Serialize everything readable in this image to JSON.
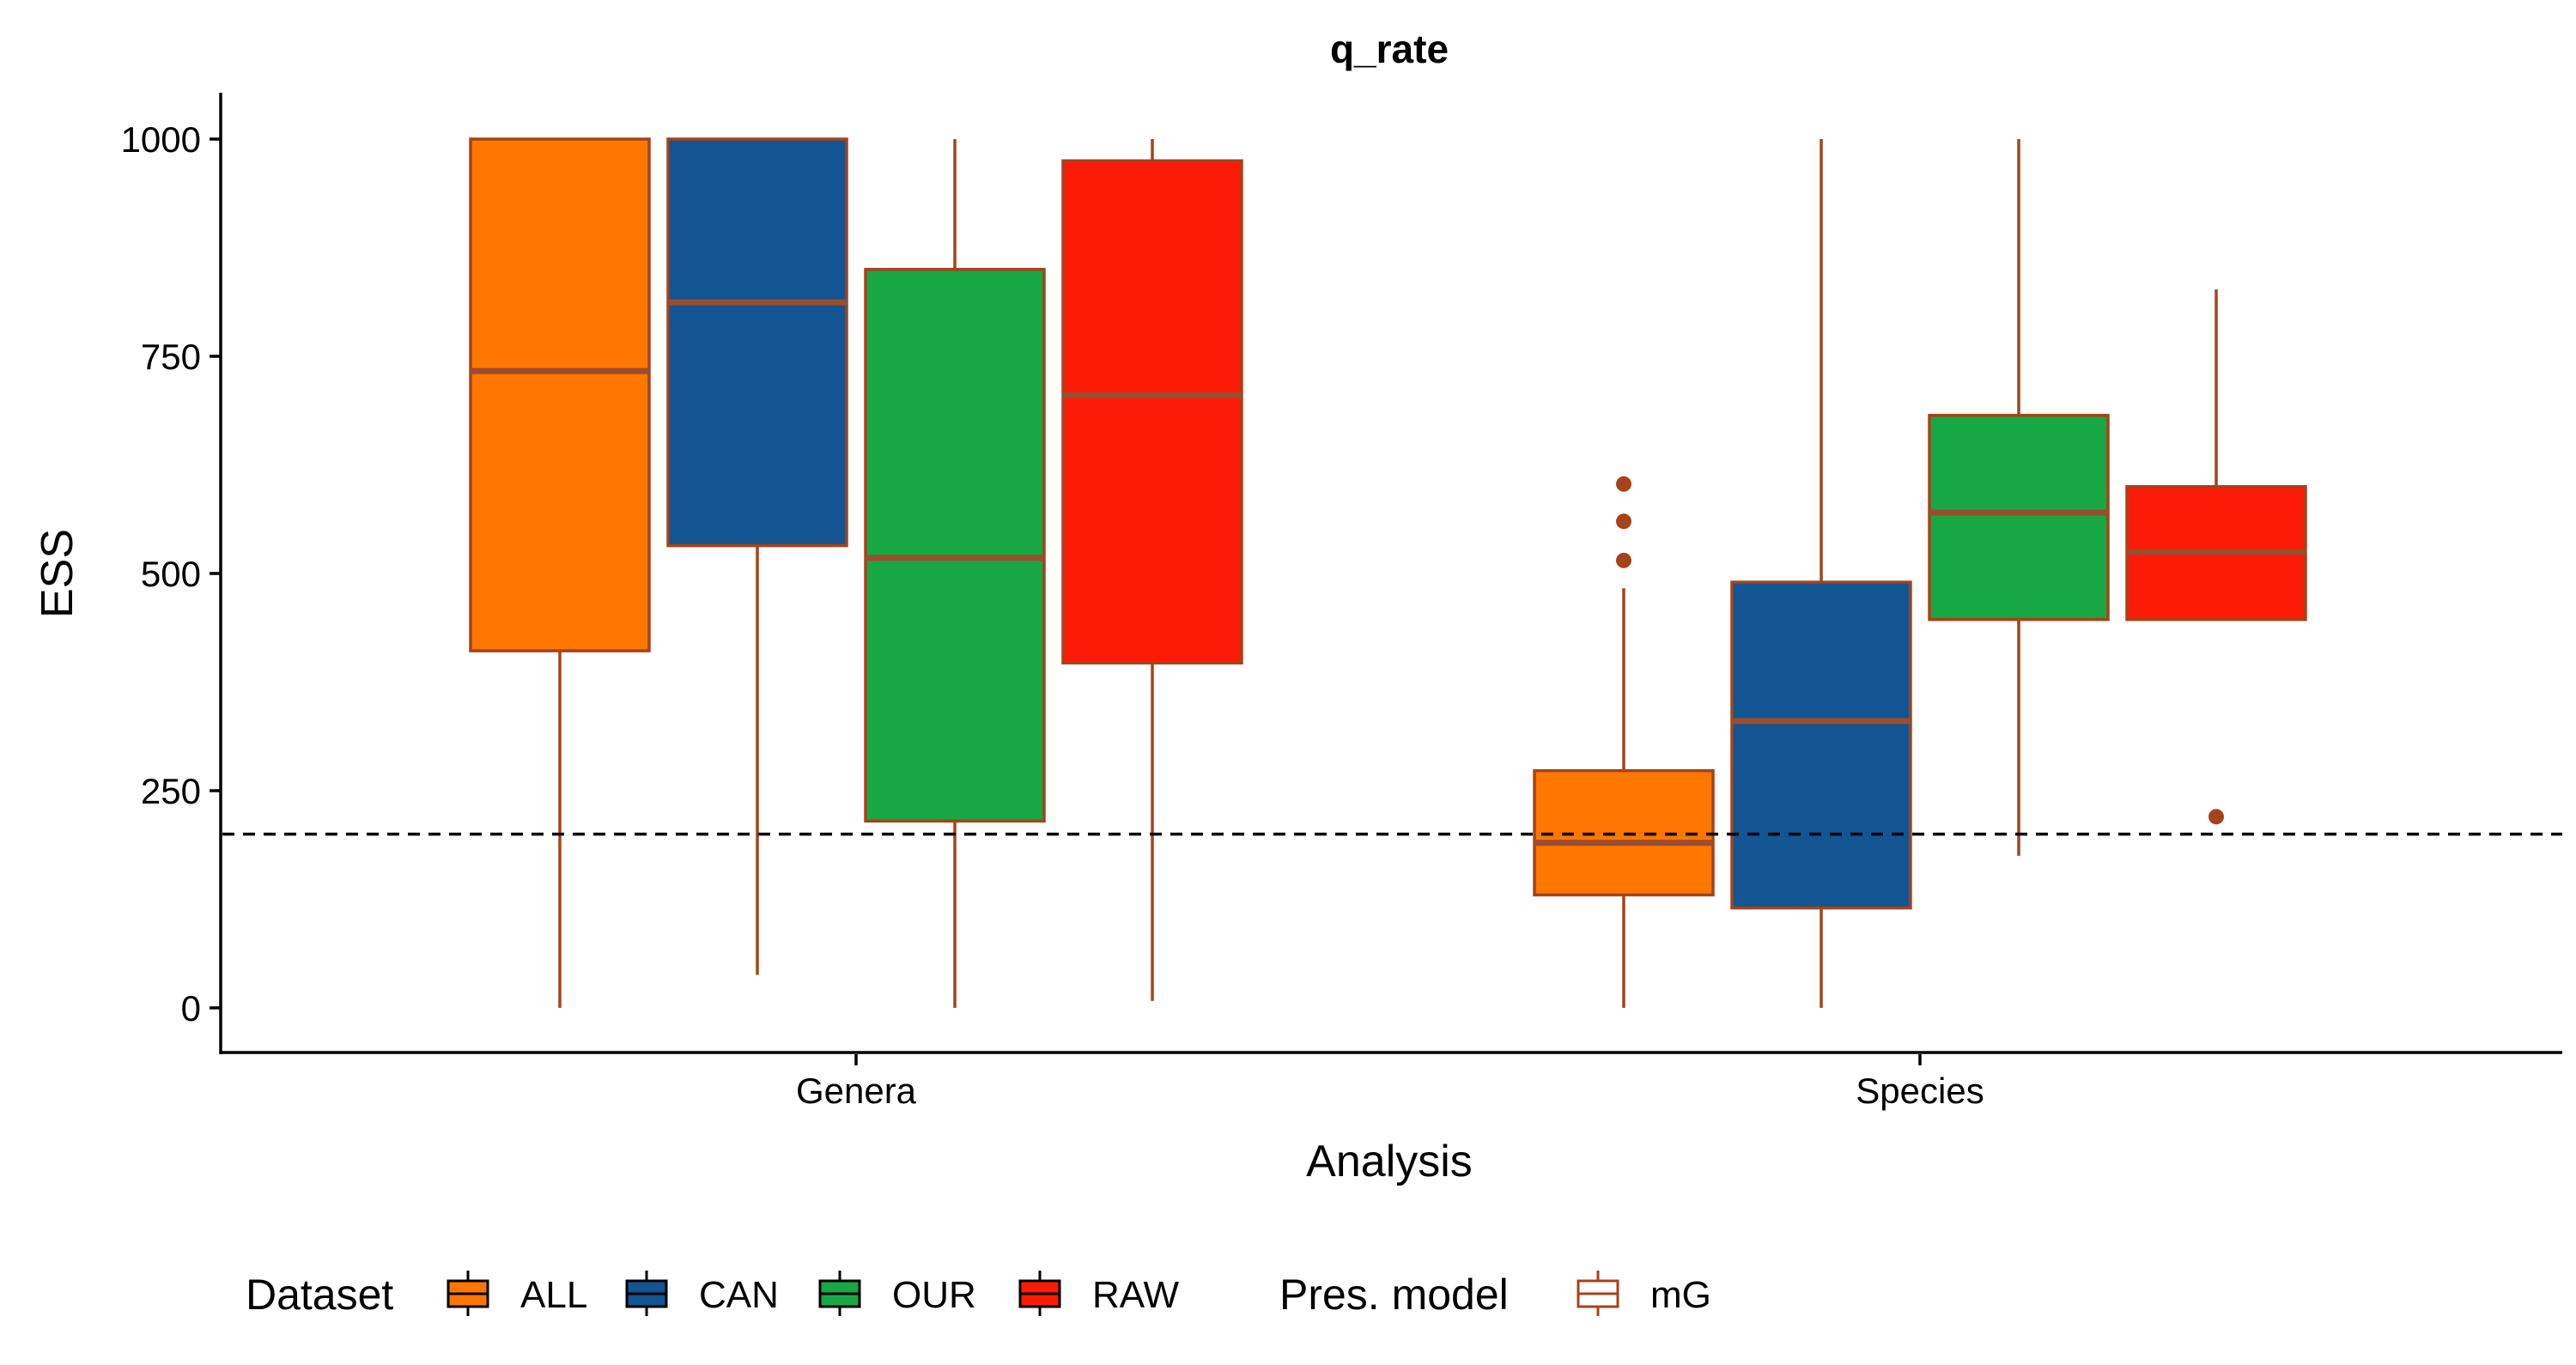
{
  "chart_data": {
    "type": "box",
    "title": "q_rate",
    "xlabel": "Analysis",
    "ylabel": "ESS",
    "categories": [
      "Genera",
      "Species"
    ],
    "y_ticks": [
      0,
      250,
      500,
      750,
      1000
    ],
    "ylim": [
      -45,
      1050
    ],
    "reference_line": {
      "y": 200,
      "style": "dashed"
    },
    "grid": false,
    "legend_position": "bottom",
    "legend": {
      "dataset_title": "Dataset",
      "dataset_entries": [
        "ALL",
        "CAN",
        "OUR",
        "RAW"
      ],
      "model_title": "Pres. model",
      "model_entries": [
        "mG"
      ]
    },
    "colors": {
      "ALL": "#ff7700",
      "CAN": "#125592",
      "OUR": "#17a843",
      "RAW": "#fd1b08",
      "outline": "#a5431b",
      "median": "#9a4d2f"
    },
    "series": [
      {
        "name": "ALL",
        "boxes": [
          {
            "category": "Genera",
            "min": 0,
            "q1": 411,
            "median": 733,
            "q3": 1000,
            "max": 1000,
            "outliers": []
          },
          {
            "category": "Species",
            "min": 0,
            "q1": 130,
            "median": 190,
            "q3": 273,
            "max": 483,
            "outliers": [
              515,
              560,
              603
            ]
          }
        ]
      },
      {
        "name": "CAN",
        "boxes": [
          {
            "category": "Genera",
            "min": 38,
            "q1": 532,
            "median": 812,
            "q3": 1000,
            "max": 1000,
            "outliers": []
          },
          {
            "category": "Species",
            "min": 0,
            "q1": 115,
            "median": 330,
            "q3": 490,
            "max": 1000,
            "outliers": []
          }
        ]
      },
      {
        "name": "OUR",
        "boxes": [
          {
            "category": "Genera",
            "min": 0,
            "q1": 215,
            "median": 518,
            "q3": 850,
            "max": 1000,
            "outliers": []
          },
          {
            "category": "Species",
            "min": 175,
            "q1": 447,
            "median": 570,
            "q3": 682,
            "max": 1000,
            "outliers": []
          }
        ]
      },
      {
        "name": "RAW",
        "boxes": [
          {
            "category": "Genera",
            "min": 8,
            "q1": 397,
            "median": 705,
            "q3": 975,
            "max": 1000,
            "outliers": []
          },
          {
            "category": "Species",
            "min": 447,
            "q1": 447,
            "median": 525,
            "q3": 600,
            "max": 827,
            "outliers": [
              220
            ]
          }
        ]
      }
    ]
  }
}
